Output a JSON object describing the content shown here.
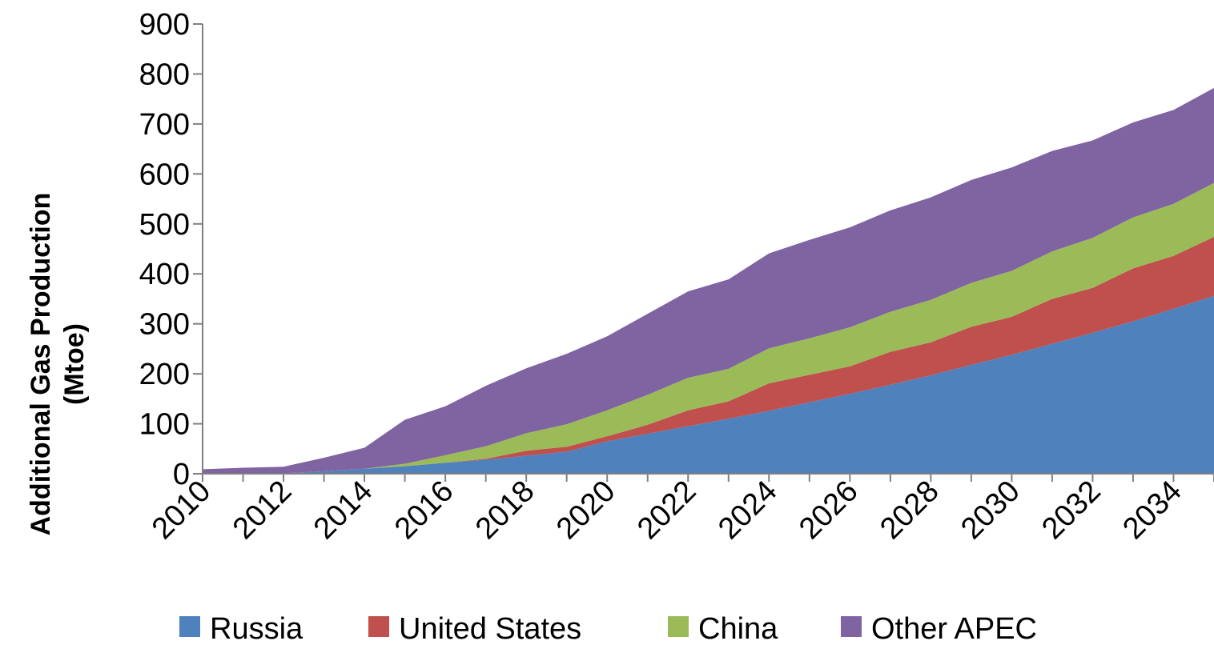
{
  "chart_data": {
    "type": "area",
    "stacked": true,
    "title": "",
    "xlabel": "",
    "ylabel_lines": [
      "Additional Gas Production",
      "(Mtoe)"
    ],
    "ylim": [
      0,
      900
    ],
    "y_ticks": [
      "0",
      "100",
      "200",
      "300",
      "400",
      "500",
      "600",
      "700",
      "800",
      "900"
    ],
    "x": [
      2010,
      2011,
      2012,
      2013,
      2014,
      2015,
      2016,
      2017,
      2018,
      2019,
      2020,
      2021,
      2022,
      2023,
      2024,
      2025,
      2026,
      2027,
      2028,
      2029,
      2030,
      2031,
      2032,
      2033,
      2034,
      2035
    ],
    "x_tick_labels": [
      "2010",
      "2012",
      "2014",
      "2016",
      "2018",
      "2020",
      "2022",
      "2024",
      "2026",
      "2028",
      "2030",
      "2032",
      "2034"
    ],
    "legend_position": "bottom",
    "grid": false,
    "series": [
      {
        "name": "Russia",
        "color": "#4F81BD",
        "values": [
          1,
          1,
          1,
          5,
          10,
          15,
          22,
          28,
          36,
          44,
          65,
          80,
          95,
          110,
          126,
          143,
          160,
          178,
          197,
          218,
          238,
          260,
          282,
          305,
          330,
          356
        ]
      },
      {
        "name": "United States",
        "color": "#C0504D",
        "values": [
          0,
          0,
          0,
          0,
          0,
          0,
          0,
          2,
          10,
          10,
          10,
          18,
          32,
          35,
          55,
          55,
          55,
          66,
          66,
          76,
          76,
          90,
          90,
          106,
          106,
          118
        ]
      },
      {
        "name": "China",
        "color": "#9BBB59",
        "values": [
          0,
          0,
          0,
          0,
          0,
          5,
          15,
          25,
          35,
          45,
          52,
          60,
          65,
          65,
          70,
          73,
          78,
          80,
          85,
          88,
          92,
          95,
          100,
          102,
          104,
          108
        ]
      },
      {
        "name": "Other APEC",
        "color": "#8064A2",
        "values": [
          8,
          11,
          13,
          27,
          42,
          88,
          98,
          121,
          130,
          141,
          148,
          162,
          173,
          179,
          190,
          197,
          200,
          203,
          205,
          206,
          207,
          201,
          195,
          190,
          188,
          190
        ]
      }
    ]
  }
}
